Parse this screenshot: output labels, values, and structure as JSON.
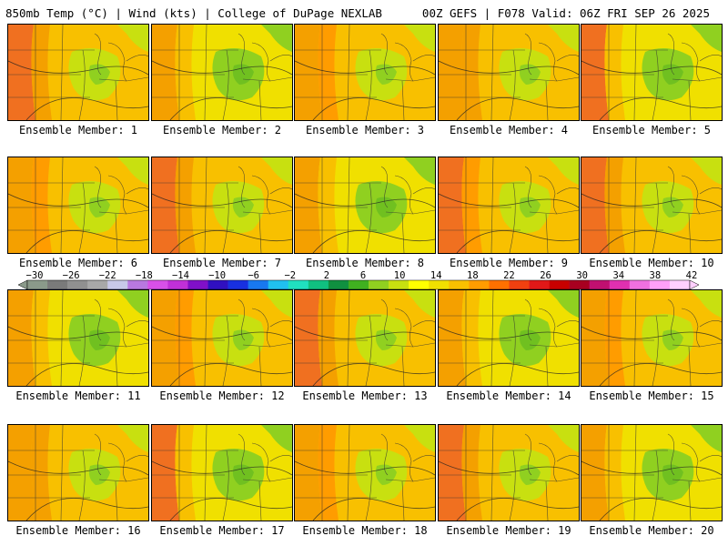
{
  "header": {
    "left": "850mb Temp (°C) | Wind (kts) | College of DuPage NEXLAB",
    "right": "00Z GEFS | F078 Valid: 06Z FRI SEP 26 2025"
  },
  "panels": [
    {
      "label": "Ensemble Member: 1"
    },
    {
      "label": "Ensemble Member: 2"
    },
    {
      "label": "Ensemble Member: 3"
    },
    {
      "label": "Ensemble Member: 4"
    },
    {
      "label": "Ensemble Member: 5"
    },
    {
      "label": "Ensemble Member: 6"
    },
    {
      "label": "Ensemble Member: 7"
    },
    {
      "label": "Ensemble Member: 8"
    },
    {
      "label": "Ensemble Member: 9"
    },
    {
      "label": "Ensemble Member: 10"
    },
    {
      "label": "Ensemble Member: 11"
    },
    {
      "label": "Ensemble Member: 12"
    },
    {
      "label": "Ensemble Member: 13"
    },
    {
      "label": "Ensemble Member: 14"
    },
    {
      "label": "Ensemble Member: 15"
    },
    {
      "label": "Ensemble Member: 16"
    },
    {
      "label": "Ensemble Member: 17"
    },
    {
      "label": "Ensemble Member: 18"
    },
    {
      "label": "Ensemble Member: 19"
    },
    {
      "label": "Ensemble Member: 20"
    }
  ],
  "colorbar": {
    "ticks": [
      "−30",
      "−26",
      "−22",
      "−18",
      "−14",
      "−10",
      "−6",
      "−2",
      "2",
      "6",
      "10",
      "14",
      "18",
      "22",
      "26",
      "30",
      "34",
      "38",
      "42"
    ],
    "colors": [
      "#8a9a8a",
      "#7a7a7a",
      "#909090",
      "#a8a8a8",
      "#c8c8e8",
      "#b878e0",
      "#d850e8",
      "#c030d8",
      "#8010c8",
      "#3010c0",
      "#1830e0",
      "#1878f0",
      "#20c0f0",
      "#20e0c0",
      "#10c080",
      "#109040",
      "#40b020",
      "#90d020",
      "#c8e010",
      "#ffff00",
      "#f0e000",
      "#f8c000",
      "#ff9c00",
      "#ff7000",
      "#f04010",
      "#e01818",
      "#c80000",
      "#a80020",
      "#c01070",
      "#e030b0",
      "#f070e0",
      "#ffa0f8",
      "#ffd0ff"
    ]
  }
}
